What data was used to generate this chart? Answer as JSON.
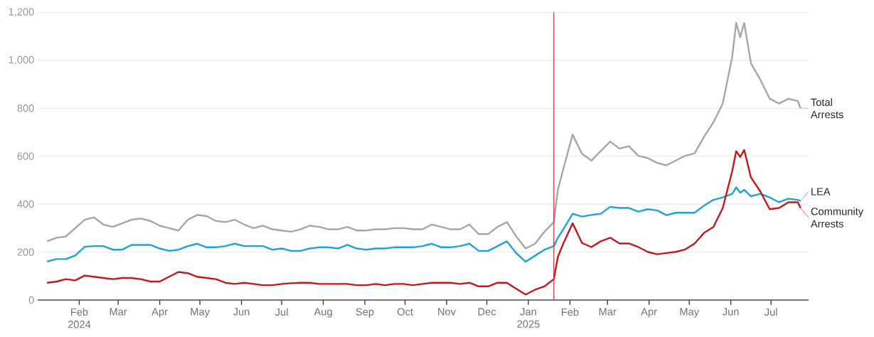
{
  "chart_data": {
    "type": "line",
    "x": [
      "2024-01-08",
      "2024-01-15",
      "2024-01-22",
      "2024-01-29",
      "2024-02-05",
      "2024-02-12",
      "2024-02-19",
      "2024-02-26",
      "2024-03-04",
      "2024-03-11",
      "2024-03-18",
      "2024-03-25",
      "2024-04-01",
      "2024-04-08",
      "2024-04-15",
      "2024-04-22",
      "2024-04-29",
      "2024-05-06",
      "2024-05-13",
      "2024-05-20",
      "2024-05-27",
      "2024-06-03",
      "2024-06-10",
      "2024-06-17",
      "2024-06-24",
      "2024-07-01",
      "2024-07-08",
      "2024-07-15",
      "2024-07-22",
      "2024-07-29",
      "2024-08-05",
      "2024-08-12",
      "2024-08-19",
      "2024-08-26",
      "2024-09-02",
      "2024-09-09",
      "2024-09-16",
      "2024-09-23",
      "2024-09-30",
      "2024-10-07",
      "2024-10-14",
      "2024-10-21",
      "2024-10-28",
      "2024-11-04",
      "2024-11-11",
      "2024-11-18",
      "2024-11-25",
      "2024-12-02",
      "2024-12-09",
      "2024-12-16",
      "2024-12-23",
      "2024-12-30",
      "2025-01-06",
      "2025-01-13",
      "2025-01-20",
      "2025-01-23",
      "2025-01-27",
      "2025-02-03",
      "2025-02-10",
      "2025-02-17",
      "2025-02-24",
      "2025-03-03",
      "2025-03-10",
      "2025-03-17",
      "2025-03-24",
      "2025-03-31",
      "2025-04-07",
      "2025-04-14",
      "2025-04-21",
      "2025-04-28",
      "2025-05-05",
      "2025-05-12",
      "2025-05-19",
      "2025-05-26",
      "2025-06-02",
      "2025-06-05",
      "2025-06-08",
      "2025-06-11",
      "2025-06-16",
      "2025-06-23",
      "2025-06-30",
      "2025-07-07",
      "2025-07-14",
      "2025-07-21",
      "2025-07-23"
    ],
    "series": [
      {
        "name": "Total Arrests",
        "color": "#a6a6a6",
        "values": [
          245,
          260,
          265,
          300,
          335,
          345,
          315,
          305,
          320,
          335,
          340,
          330,
          310,
          300,
          290,
          335,
          355,
          350,
          330,
          325,
          335,
          315,
          300,
          310,
          295,
          290,
          285,
          295,
          310,
          305,
          295,
          295,
          305,
          290,
          290,
          295,
          295,
          300,
          300,
          295,
          295,
          315,
          305,
          295,
          295,
          315,
          275,
          275,
          305,
          325,
          265,
          215,
          235,
          285,
          325,
          460,
          545,
          690,
          610,
          582,
          622,
          661,
          632,
          642,
          602,
          592,
          572,
          562,
          582,
          602,
          612,
          681,
          741,
          820,
          1013,
          1156,
          1097,
          1156,
          988,
          919,
          840,
          820,
          840,
          830,
          800
        ]
      },
      {
        "name": "LEA",
        "color": "#1fa3d5",
        "values": [
          161,
          171,
          171,
          186,
          222,
          225,
          225,
          210,
          210,
          230,
          230,
          230,
          215,
          205,
          210,
          225,
          235,
          220,
          220,
          225,
          235,
          225,
          225,
          225,
          210,
          215,
          205,
          205,
          215,
          220,
          220,
          215,
          230,
          215,
          210,
          215,
          215,
          220,
          220,
          220,
          225,
          235,
          220,
          220,
          225,
          235,
          205,
          205,
          225,
          245,
          195,
          160,
          185,
          210,
          225,
          260,
          295,
          360,
          348,
          355,
          360,
          389,
          384,
          384,
          369,
          379,
          374,
          354,
          364,
          364,
          364,
          394,
          418,
          428,
          443,
          470,
          448,
          460,
          433,
          443,
          428,
          408,
          423,
          418,
          413
        ]
      },
      {
        "name": "Community Arrests",
        "color": "#c8161d",
        "values": [
          72,
          77,
          87,
          82,
          102,
          97,
          92,
          87,
          92,
          92,
          87,
          77,
          77,
          97,
          117,
          112,
          97,
          92,
          87,
          72,
          67,
          72,
          67,
          62,
          62,
          67,
          70,
          72,
          72,
          67,
          67,
          67,
          67,
          62,
          62,
          67,
          62,
          67,
          67,
          62,
          67,
          72,
          72,
          72,
          67,
          72,
          57,
          57,
          72,
          72,
          47,
          23,
          43,
          57,
          87,
          180,
          235,
          320,
          238,
          221,
          245,
          260,
          236,
          236,
          221,
          201,
          191,
          196,
          201,
          211,
          236,
          280,
          305,
          384,
          537,
          621,
          597,
          626,
          512,
          453,
          379,
          384,
          408,
          408,
          384
        ]
      }
    ],
    "xlim": [
      "2024-01-01",
      "2025-07-29"
    ],
    "xticks": [
      {
        "value": "2024-02-01",
        "label": "Feb 2024"
      },
      {
        "value": "2024-03-01",
        "label": "Mar"
      },
      {
        "value": "2024-04-01",
        "label": "Apr"
      },
      {
        "value": "2024-05-01",
        "label": "May"
      },
      {
        "value": "2024-06-01",
        "label": "Jun"
      },
      {
        "value": "2024-07-01",
        "label": "Jul"
      },
      {
        "value": "2024-08-01",
        "label": "Aug"
      },
      {
        "value": "2024-09-01",
        "label": "Sep"
      },
      {
        "value": "2024-10-01",
        "label": "Oct"
      },
      {
        "value": "2024-11-01",
        "label": "Nov"
      },
      {
        "value": "2024-12-01",
        "label": "Dec"
      },
      {
        "value": "2025-01-01",
        "label": "Jan 2025"
      },
      {
        "value": "2025-02-01",
        "label": "Feb"
      },
      {
        "value": "2025-03-01",
        "label": "Mar"
      },
      {
        "value": "2025-04-01",
        "label": "Apr"
      },
      {
        "value": "2025-05-01",
        "label": "May"
      },
      {
        "value": "2025-06-01",
        "label": "Jun"
      },
      {
        "value": "2025-07-01",
        "label": "Jul"
      }
    ],
    "ylim": [
      0,
      1200
    ],
    "yticks": [
      0,
      200,
      400,
      600,
      800,
      {
        "value": 1000,
        "label": "1,000"
      },
      {
        "value": 1200,
        "label": "1,200"
      }
    ],
    "grid": "y",
    "legend": "right",
    "ref_lines": [
      {
        "axis": "x",
        "value": "2025-01-20",
        "color": "#d9363e"
      }
    ]
  }
}
